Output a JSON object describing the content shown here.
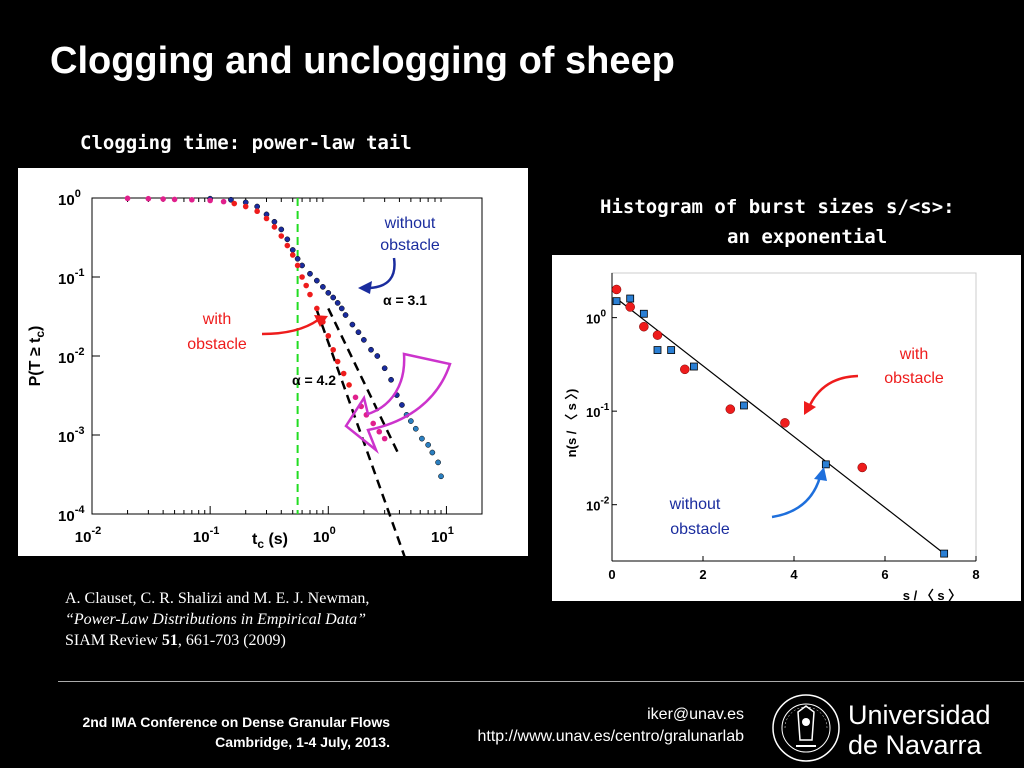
{
  "slide": {
    "title": "Clogging and unclogging of sheep",
    "left_heading": "Clogging time: power-law tail",
    "right_heading_line1": "Histogram of burst sizes s/<s>:",
    "right_heading_line2": "an exponential"
  },
  "reference": {
    "authors": "A. Clauset, C. R. Shalizi and M. E. J. Newman,",
    "paper_title": "“Power-Law Distributions in Empirical Data”",
    "journal": "SIAM Review ",
    "volume": "51",
    "pages": ", 661-703 (2009)"
  },
  "footer": {
    "conference": "2nd IMA Conference on Dense Granular Flows",
    "place": "Cambridge, 1-4 July, 2013.",
    "email": "iker@unav.es",
    "url": "http://www.unav.es/centro/gralunarlab",
    "university_line1": "Universidad",
    "university_line2": "de Navarra",
    "seal_text": "UNIVERSITAS NAVARRENSIS"
  },
  "colors": {
    "red": "#ee1c1c",
    "blue": "#1a2c9e",
    "light_blue": "#2b7fc0",
    "magenta": "#e0208c",
    "green": "#22dd22",
    "purple": "#cc33cc"
  },
  "chart_data": [
    {
      "type": "scatter",
      "xlabel_main": "t",
      "xlabel_sub": "c",
      "xlabel_unit": " (s)",
      "ylabel": "P(T ≥ t",
      "ylabel_sub": "c",
      "ylabel_close": ")",
      "x_log": true,
      "y_log": true,
      "xlim": [
        0.01,
        20
      ],
      "ylim": [
        0.0001,
        1
      ],
      "x_ticks": [
        {
          "base": "10",
          "exp": "-2",
          "v": 0.01
        },
        {
          "base": "10",
          "exp": "-1",
          "v": 0.1
        },
        {
          "base": "10",
          "exp": "0",
          "v": 1
        },
        {
          "base": "10",
          "exp": "1",
          "v": 10
        }
      ],
      "y_ticks": [
        {
          "base": "10",
          "exp": "0",
          "v": 1
        },
        {
          "base": "10",
          "exp": "-1",
          "v": 0.1
        },
        {
          "base": "10",
          "exp": "-2",
          "v": 0.01
        },
        {
          "base": "10",
          "exp": "-3",
          "v": 0.001
        },
        {
          "base": "10",
          "exp": "-4",
          "v": 0.0001
        }
      ],
      "cutoff_line_x": 0.55,
      "series": [
        {
          "name": "without obstacle",
          "x": [
            0.1,
            0.15,
            0.2,
            0.25,
            0.3,
            0.35,
            0.4,
            0.45,
            0.5,
            0.55,
            0.6,
            0.7,
            0.8,
            0.9,
            1.0,
            1.1,
            1.2,
            1.3,
            1.4,
            1.6,
            1.8,
            2.0,
            2.3,
            2.6,
            3.0,
            3.4,
            3.8,
            4.2,
            4.6,
            5.0,
            5.5,
            6.2,
            7.0,
            7.6,
            8.5,
            9.0
          ],
          "y": [
            0.98,
            0.95,
            0.88,
            0.78,
            0.62,
            0.5,
            0.4,
            0.3,
            0.22,
            0.17,
            0.14,
            0.11,
            0.09,
            0.075,
            0.063,
            0.055,
            0.047,
            0.04,
            0.033,
            0.025,
            0.02,
            0.016,
            0.012,
            0.01,
            0.007,
            0.005,
            0.0032,
            0.0024,
            0.0018,
            0.0015,
            0.0012,
            0.0009,
            0.00075,
            0.0006,
            0.00045,
            0.0003
          ]
        },
        {
          "name": "with obstacle",
          "x": [
            0.02,
            0.03,
            0.04,
            0.05,
            0.07,
            0.1,
            0.13,
            0.16,
            0.2,
            0.25,
            0.3,
            0.35,
            0.4,
            0.45,
            0.5,
            0.55,
            0.6,
            0.65,
            0.7,
            0.8,
            0.9,
            1.0,
            1.1,
            1.2,
            1.35,
            1.5,
            1.7,
            1.9,
            2.1,
            2.4,
            2.7,
            3.0
          ],
          "y": [
            0.99,
            0.98,
            0.97,
            0.96,
            0.95,
            0.93,
            0.9,
            0.85,
            0.78,
            0.68,
            0.55,
            0.43,
            0.33,
            0.25,
            0.19,
            0.14,
            0.1,
            0.078,
            0.06,
            0.04,
            0.027,
            0.018,
            0.012,
            0.0085,
            0.006,
            0.0043,
            0.003,
            0.0023,
            0.0018,
            0.0014,
            0.0011,
            0.0009
          ]
        }
      ],
      "fits": [
        {
          "label": "α = 3.1",
          "slope": -3.1,
          "x": [
            1.0,
            4.0
          ],
          "y0": 0.04
        },
        {
          "label": "α = 4.2",
          "slope": -4.2,
          "x": [
            0.8,
            4.5
          ],
          "y0": 0.038
        }
      ],
      "annotations": {
        "without_line1": "without",
        "without_line2": "obstacle",
        "with_line1": "with",
        "with_line2": "obstacle"
      }
    },
    {
      "type": "scatter",
      "xlabel": "s / 〈 s 〉",
      "ylabel": "n(s / 〈 s 〉)",
      "x_log": false,
      "y_log": true,
      "xlim": [
        0,
        8
      ],
      "ylim": [
        0.0025,
        3
      ],
      "x_ticks": [
        "0",
        "2",
        "4",
        "6",
        "8"
      ],
      "y_ticks": [
        {
          "base": "10",
          "exp": "0",
          "v": 1
        },
        {
          "base": "10",
          "exp": "-1",
          "v": 0.1
        },
        {
          "base": "10",
          "exp": "-2",
          "v": 0.01
        }
      ],
      "series": [
        {
          "name": "with obstacle",
          "x": [
            0.1,
            0.4,
            0.7,
            1.0,
            1.6,
            2.6,
            3.8,
            5.5
          ],
          "y": [
            2.0,
            1.3,
            0.8,
            0.65,
            0.28,
            0.105,
            0.075,
            0.025
          ]
        },
        {
          "name": "without obstacle",
          "x": [
            0.1,
            0.4,
            0.7,
            1.0,
            1.3,
            1.8,
            2.9,
            4.7,
            7.3
          ],
          "y": [
            1.5,
            1.6,
            1.1,
            0.45,
            0.45,
            0.3,
            0.115,
            0.027,
            0.003
          ]
        }
      ],
      "fit": {
        "x": [
          0.1,
          7.3
        ],
        "y": [
          1.6,
          0.003
        ]
      },
      "annotations": {
        "with_line1": "with",
        "with_line2": "obstacle",
        "without_line1": "without",
        "without_line2": "obstacle"
      }
    }
  ]
}
